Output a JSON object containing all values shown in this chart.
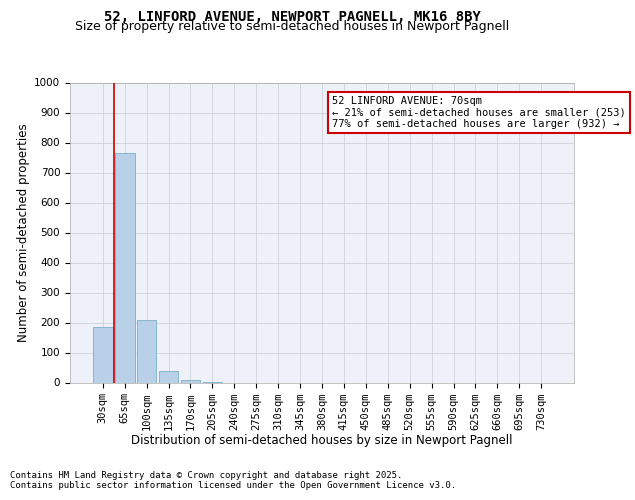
{
  "title": "52, LINFORD AVENUE, NEWPORT PAGNELL, MK16 8BY",
  "subtitle": "Size of property relative to semi-detached houses in Newport Pagnell",
  "xlabel": "Distribution of semi-detached houses by size in Newport Pagnell",
  "ylabel": "Number of semi-detached properties",
  "categories": [
    "30sqm",
    "65sqm",
    "100sqm",
    "135sqm",
    "170sqm",
    "205sqm",
    "240sqm",
    "275sqm",
    "310sqm",
    "345sqm",
    "380sqm",
    "415sqm",
    "450sqm",
    "485sqm",
    "520sqm",
    "555sqm",
    "590sqm",
    "625sqm",
    "660sqm",
    "695sqm",
    "730sqm"
  ],
  "values": [
    185,
    765,
    210,
    37,
    10,
    3,
    0,
    0,
    0,
    0,
    0,
    0,
    0,
    0,
    0,
    0,
    0,
    0,
    0,
    0,
    0
  ],
  "bar_color": "#b8d0e8",
  "bar_edge_color": "#7aaec8",
  "vline_color": "#cc0000",
  "ylim": [
    0,
    1000
  ],
  "yticks": [
    0,
    100,
    200,
    300,
    400,
    500,
    600,
    700,
    800,
    900,
    1000
  ],
  "annotation_title": "52 LINFORD AVENUE: 70sqm",
  "annotation_line1": "← 21% of semi-detached houses are smaller (253)",
  "annotation_line2": "77% of semi-detached houses are larger (932) →",
  "annotation_box_color": "#cc0000",
  "grid_color": "#c8ccd8",
  "background_color": "#eef2f8",
  "footer": "Contains HM Land Registry data © Crown copyright and database right 2025.\nContains public sector information licensed under the Open Government Licence v3.0.",
  "title_fontsize": 10,
  "subtitle_fontsize": 9,
  "xlabel_fontsize": 8.5,
  "ylabel_fontsize": 8.5,
  "tick_fontsize": 7.5,
  "annotation_fontsize": 7.5,
  "footer_fontsize": 6.5
}
